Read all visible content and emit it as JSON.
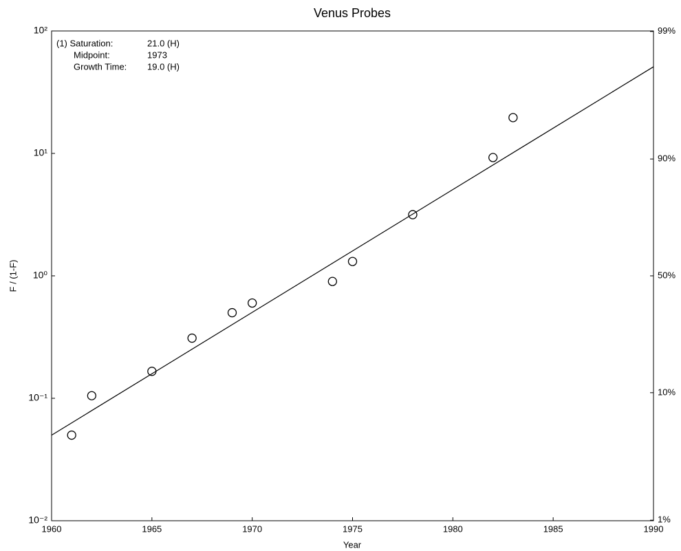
{
  "chart_data": {
    "type": "scatter",
    "title": "Venus Probes",
    "xlabel": "Year",
    "ylabel": "F / (1-F)",
    "xlim": [
      1960,
      1990
    ],
    "xticks": [
      1960,
      1965,
      1970,
      1975,
      1980,
      1985,
      1990
    ],
    "ylim": [
      0.01,
      100
    ],
    "ylog": true,
    "yticks": [
      {
        "value": 0.01,
        "label": "10⁻²"
      },
      {
        "value": 0.1,
        "label": "10⁻¹"
      },
      {
        "value": 1,
        "label": "10⁰"
      },
      {
        "value": 10,
        "label": "10¹"
      },
      {
        "value": 100,
        "label": "10²"
      }
    ],
    "y2ticks": [
      {
        "value": 1,
        "label": "1%"
      },
      {
        "value": 10,
        "label": "10%"
      },
      {
        "value": 50,
        "label": "50%"
      },
      {
        "value": 90,
        "label": "90%"
      },
      {
        "value": 99,
        "label": "99%"
      }
    ],
    "annotations": [
      [
        "(1) Saturation:",
        "21.0 (H)"
      ],
      [
        "Midpoint:",
        "1973"
      ],
      [
        "Growth Time:",
        "19.0 (H)"
      ]
    ],
    "series": [
      {
        "kind": "points",
        "color": "#000000",
        "x": [
          1961,
          1962,
          1965,
          1967,
          1969,
          1970,
          1974,
          1975,
          1978,
          1982,
          1983
        ],
        "values": [
          0.05,
          0.105,
          0.166,
          0.31,
          0.5,
          0.6,
          0.9,
          1.31,
          3.16,
          9.25,
          19.6
        ]
      },
      {
        "kind": "line",
        "color": "#000000",
        "x": [
          1960,
          1990
        ],
        "values": [
          0.05,
          51
        ]
      }
    ]
  }
}
